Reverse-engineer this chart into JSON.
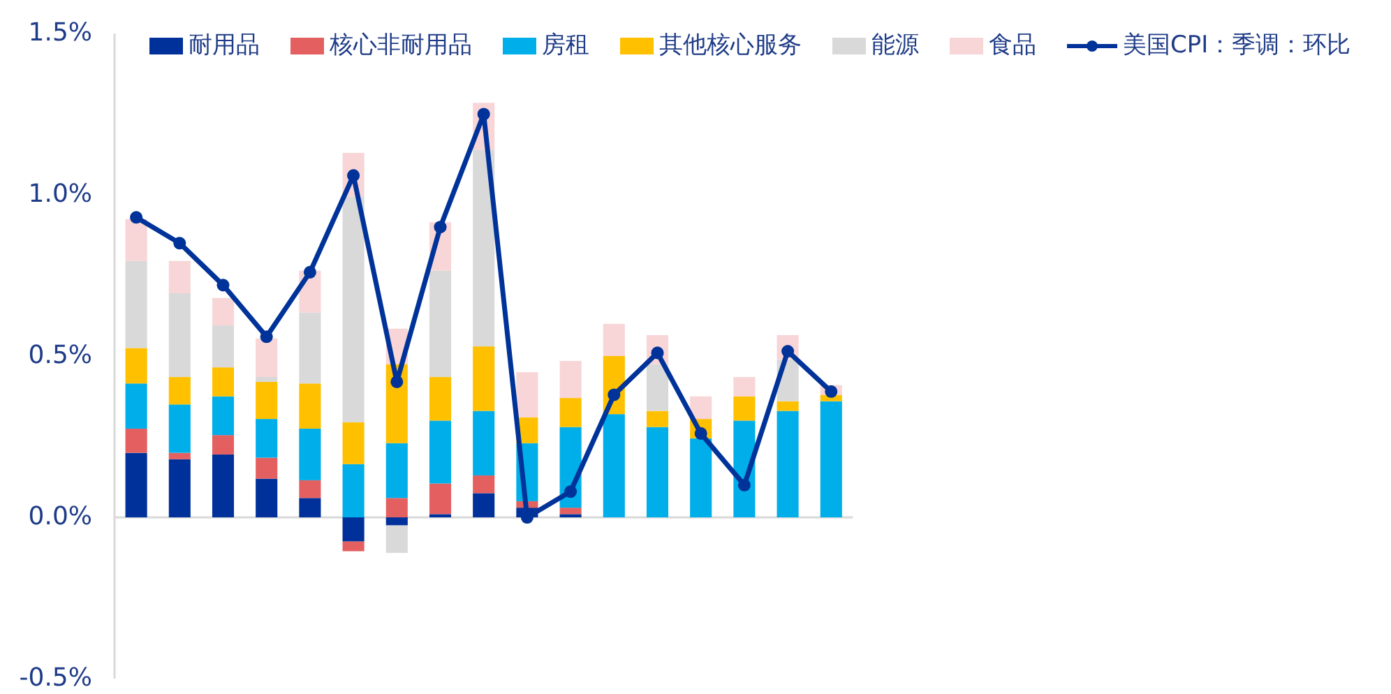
{
  "chart_data": {
    "type": "bar",
    "stacked": true,
    "categories": [
      null,
      null,
      null,
      null,
      null,
      null,
      null,
      null,
      null,
      null,
      null,
      null,
      null,
      null,
      null,
      null,
      null
    ],
    "series": [
      {
        "name": "耐用品",
        "color": "#00319a",
        "values": [
          0.2,
          0.18,
          0.195,
          0.12,
          0.06,
          -0.075,
          -0.025,
          0.01,
          0.075,
          0.03,
          0.01,
          null,
          null,
          null,
          null,
          null,
          null
        ]
      },
      {
        "name": "核心非耐用品",
        "color": "#e46060",
        "values": [
          0.075,
          0.02,
          0.06,
          0.065,
          0.055,
          -0.03,
          0.06,
          0.095,
          0.055,
          0.02,
          0.02,
          null,
          null,
          null,
          null,
          null,
          null
        ]
      },
      {
        "name": "房租",
        "color": "#00aee9",
        "values": [
          0.14,
          0.15,
          0.12,
          0.12,
          0.16,
          0.165,
          0.17,
          0.195,
          0.2,
          0.18,
          0.25,
          0.32,
          0.28,
          0.245,
          0.3,
          0.33,
          0.36
        ]
      },
      {
        "name": "其他核心服务",
        "color": "#ffc000",
        "values": [
          0.11,
          0.085,
          0.09,
          0.115,
          0.14,
          0.13,
          0.245,
          0.135,
          0.2,
          0.08,
          0.09,
          0.18,
          0.05,
          0.06,
          0.075,
          0.03,
          0.02
        ]
      },
      {
        "name": "能源",
        "color": "#d9d9d9",
        "values": [
          0.27,
          0.26,
          0.13,
          0.015,
          0.22,
          0.7,
          -0.085,
          0.33,
          0.61,
          null,
          null,
          null,
          0.145,
          null,
          null,
          0.13,
          null
        ]
      },
      {
        "name": "食品",
        "color": "#f8d5d7",
        "values": [
          0.13,
          0.1,
          0.085,
          0.12,
          0.13,
          0.135,
          0.11,
          0.15,
          0.145,
          0.14,
          0.115,
          0.1,
          0.09,
          0.07,
          0.06,
          0.075,
          0.03
        ]
      },
      {
        "name": "美国CPI：季调：环比",
        "type": "line",
        "color": "#003399",
        "values": [
          0.93,
          0.85,
          0.72,
          0.56,
          0.76,
          1.06,
          0.42,
          0.9,
          1.25,
          0.0,
          0.08,
          0.38,
          0.51,
          0.26,
          0.1,
          0.515,
          0.39
        ]
      }
    ],
    "ylim": [
      -0.5,
      1.5
    ],
    "yticks": [
      {
        "value": -0.5,
        "label": "-0.5%"
      },
      {
        "value": 0,
        "label": "0.0%"
      },
      {
        "value": 0.5,
        "label": "0.5%"
      },
      {
        "value": 1,
        "label": "1.0%"
      },
      {
        "value": 1.5,
        "label": "1.5%"
      }
    ],
    "legend": "top",
    "marker": "circle",
    "line_style": "solid"
  }
}
